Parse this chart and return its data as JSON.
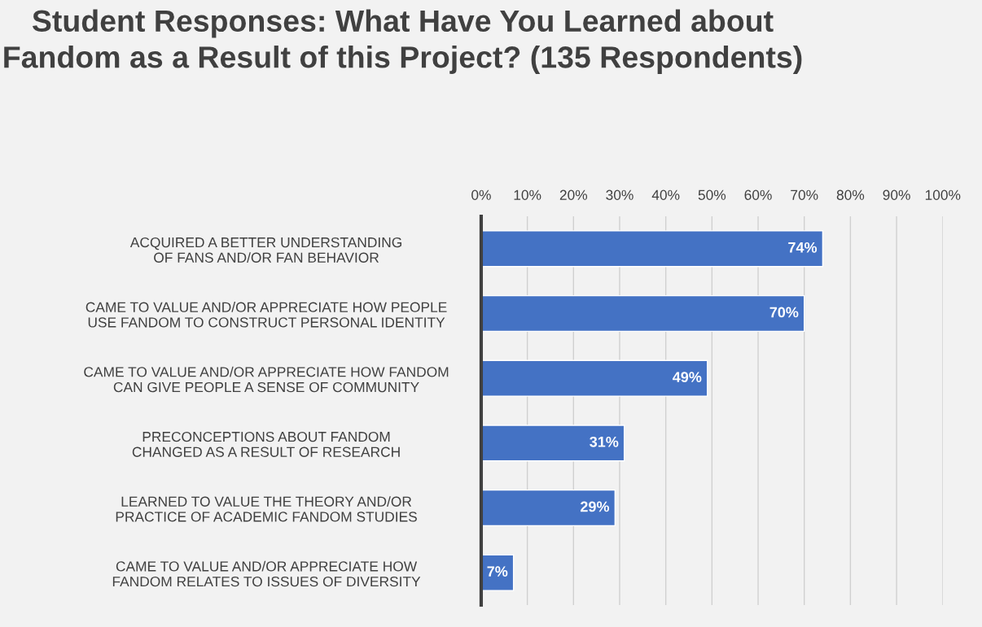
{
  "chart_data": {
    "type": "bar",
    "orientation": "horizontal",
    "title": "Student Responses: What Have You Learned about Fandom as a Result of this Project? (135 Respondents)",
    "categories": [
      "ACQUIRED A BETTER UNDERSTANDING OF FANS AND/OR FAN BEHAVIOR",
      "CAME TO VALUE AND/OR APPRECIATE HOW PEOPLE USE FANDOM TO CONSTRUCT PERSONAL IDENTITY",
      "CAME TO VALUE AND/OR APPRECIATE HOW FANDOM CAN GIVE PEOPLE A SENSE OF COMMUNITY",
      "PRECONCEPTIONS ABOUT FANDOM CHANGED AS A RESULT OF RESEARCH",
      "LEARNED TO VALUE THE THEORY AND/OR PRACTICE OF ACADEMIC FANDOM STUDIES",
      "CAME TO VALUE AND/OR APPRECIATE HOW FANDOM RELATES TO ISSUES OF DIVERSITY"
    ],
    "values": [
      74,
      70,
      49,
      31,
      29,
      7
    ],
    "value_labels": [
      "74%",
      "70%",
      "49%",
      "31%",
      "29%",
      "7%"
    ],
    "color": "#4472c4",
    "xlim": [
      0,
      100
    ],
    "xticks": [
      {
        "value": 0,
        "label": "0%"
      },
      {
        "value": 10,
        "label": "10%"
      },
      {
        "value": 20,
        "label": "20%"
      },
      {
        "value": 30,
        "label": "30%"
      },
      {
        "value": 40,
        "label": "40%"
      },
      {
        "value": 50,
        "label": "50%"
      },
      {
        "value": 60,
        "label": "60%"
      },
      {
        "value": 70,
        "label": "70%"
      },
      {
        "value": 80,
        "label": "80%"
      },
      {
        "value": 90,
        "label": "90%"
      },
      {
        "value": 100,
        "label": "100%"
      }
    ],
    "grid": "x",
    "legend": false
  }
}
